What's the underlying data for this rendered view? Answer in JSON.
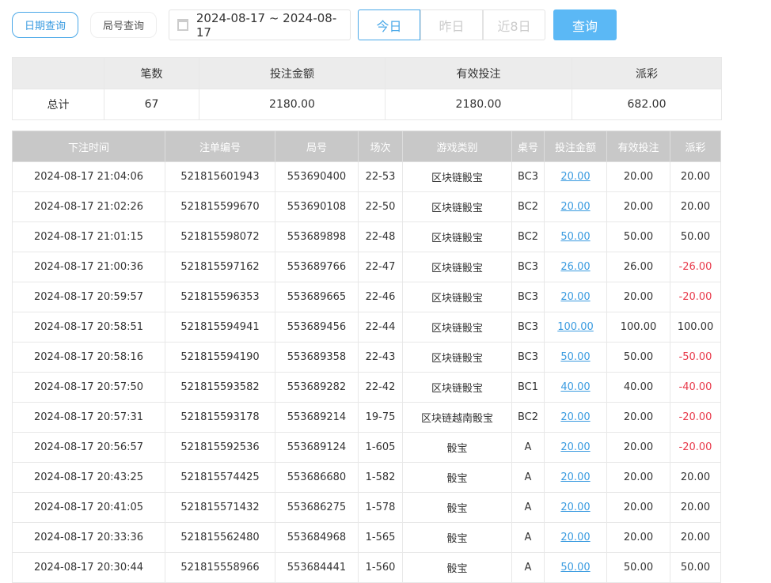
{
  "tabs": {
    "date_query": "日期查询",
    "round_query": "局号查询"
  },
  "date_range": "2024-08-17 ~ 2024-08-17",
  "quick": {
    "today": "今日",
    "yesterday": "昨日",
    "last8": "近8日"
  },
  "query_label": "查询",
  "summary": {
    "headers": [
      "",
      "笔数",
      "投注金额",
      "有效投注",
      "派彩"
    ],
    "row": [
      "总计",
      "67",
      "2180.00",
      "2180.00",
      "682.00"
    ]
  },
  "detail": {
    "headers": [
      "下注时间",
      "注单编号",
      "局号",
      "场次",
      "游戏类别",
      "桌号",
      "投注金额",
      "有效投注",
      "派彩"
    ],
    "rows": [
      [
        "2024-08-17 21:04:06",
        "521815601943",
        "553690400",
        "22-53",
        "区块链骰宝",
        "BC3",
        "20.00",
        "20.00",
        "20.00"
      ],
      [
        "2024-08-17 21:02:26",
        "521815599670",
        "553690108",
        "22-50",
        "区块链骰宝",
        "BC2",
        "20.00",
        "20.00",
        "20.00"
      ],
      [
        "2024-08-17 21:01:15",
        "521815598072",
        "553689898",
        "22-48",
        "区块链骰宝",
        "BC2",
        "50.00",
        "50.00",
        "50.00"
      ],
      [
        "2024-08-17 21:00:36",
        "521815597162",
        "553689766",
        "22-47",
        "区块链骰宝",
        "BC3",
        "26.00",
        "26.00",
        "-26.00"
      ],
      [
        "2024-08-17 20:59:57",
        "521815596353",
        "553689665",
        "22-46",
        "区块链骰宝",
        "BC3",
        "20.00",
        "20.00",
        "-20.00"
      ],
      [
        "2024-08-17 20:58:51",
        "521815594941",
        "553689456",
        "22-44",
        "区块链骰宝",
        "BC3",
        "100.00",
        "100.00",
        "100.00"
      ],
      [
        "2024-08-17 20:58:16",
        "521815594190",
        "553689358",
        "22-43",
        "区块链骰宝",
        "BC3",
        "50.00",
        "50.00",
        "-50.00"
      ],
      [
        "2024-08-17 20:57:50",
        "521815593582",
        "553689282",
        "22-42",
        "区块链骰宝",
        "BC1",
        "40.00",
        "40.00",
        "-40.00"
      ],
      [
        "2024-08-17 20:57:31",
        "521815593178",
        "553689214",
        "19-75",
        "区块链越南骰宝",
        "BC2",
        "20.00",
        "20.00",
        "-20.00"
      ],
      [
        "2024-08-17 20:56:57",
        "521815592536",
        "553689124",
        "1-605",
        "骰宝",
        "A",
        "20.00",
        "20.00",
        "-20.00"
      ],
      [
        "2024-08-17 20:43:25",
        "521815574425",
        "553686680",
        "1-582",
        "骰宝",
        "A",
        "20.00",
        "20.00",
        "20.00"
      ],
      [
        "2024-08-17 20:41:05",
        "521815571432",
        "553686275",
        "1-578",
        "骰宝",
        "A",
        "20.00",
        "20.00",
        "20.00"
      ],
      [
        "2024-08-17 20:33:36",
        "521815562480",
        "553684968",
        "1-565",
        "骰宝",
        "A",
        "20.00",
        "20.00",
        "20.00"
      ],
      [
        "2024-08-17 20:30:44",
        "521815558966",
        "553684441",
        "1-560",
        "骰宝",
        "A",
        "50.00",
        "50.00",
        "50.00"
      ]
    ]
  },
  "colors": {
    "accent": "#4aa8e8",
    "negative": "#e8394a"
  }
}
